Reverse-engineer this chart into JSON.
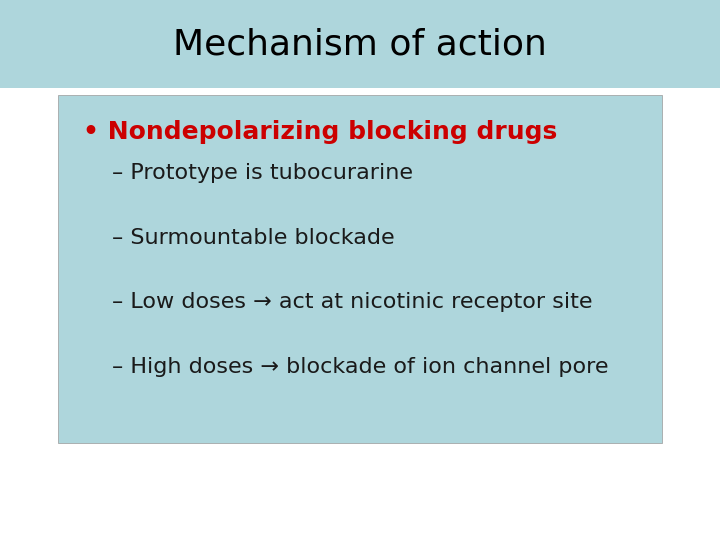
{
  "title": "Mechanism of action",
  "title_bg_color": "#aed6dc",
  "title_fontsize": 26,
  "title_color": "#000000",
  "title_fontweight": "normal",
  "slide_bg_color": "#ffffff",
  "content_bg_color": "#aed6dc",
  "content_border_color": "#888888",
  "bullet_text": "Nondepolarizing blocking drugs",
  "bullet_color": "#cc0000",
  "bullet_fontsize": 18,
  "bullet_fontweight": "bold",
  "sub_items": [
    "– Prototype is tubocurarine",
    "– Surmountable blockade",
    "– Low doses → act at nicotinic receptor site",
    "– High doses → blockade of ion channel pore"
  ],
  "sub_fontsize": 16,
  "sub_color": "#1a1a1a",
  "sub_fontweight": "normal"
}
